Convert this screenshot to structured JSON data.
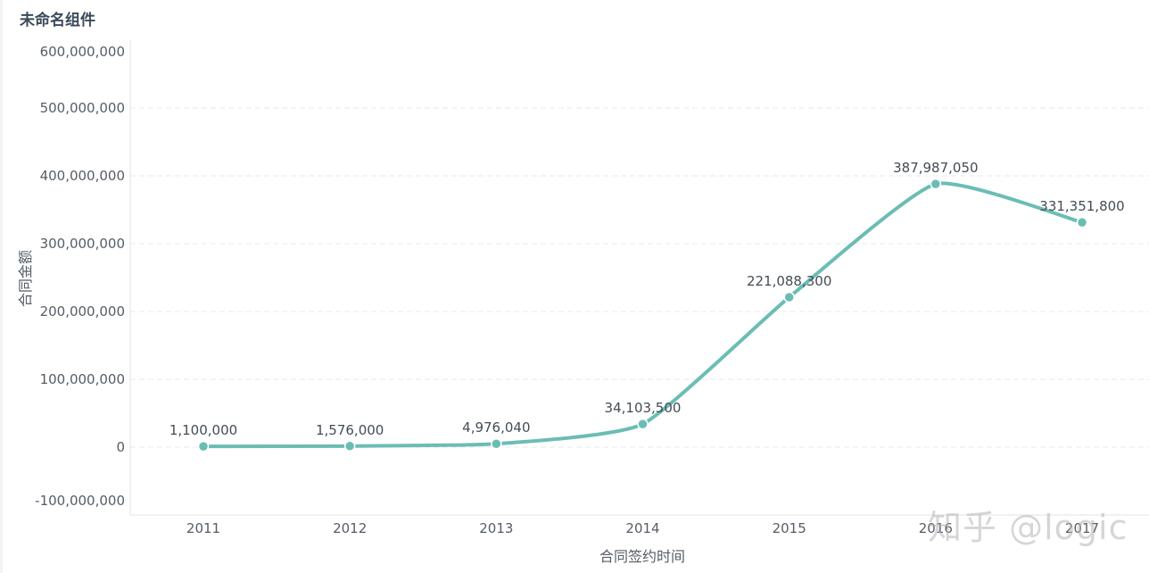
{
  "widget": {
    "title": "未命名组件"
  },
  "watermark": "知乎 @logic",
  "colors": {
    "line": "#6bbdb4",
    "grid": "#e8e8e8",
    "axis": "#e3e3e3"
  },
  "chart_data": {
    "type": "line",
    "smooth": true,
    "xlabel": "合同签约时间",
    "ylabel": "合同金额",
    "categories": [
      "2011",
      "2012",
      "2013",
      "2014",
      "2015",
      "2016",
      "2017"
    ],
    "series": [
      {
        "values": [
          1100000,
          1576000,
          4976040,
          34103500,
          221088300,
          387987050,
          331351800
        ],
        "labels": [
          "1,100,000",
          "1,576,000",
          "4,976,040",
          "34,103,500",
          "221,088,300",
          "387,987,050",
          "331,351,800"
        ]
      }
    ],
    "yticks": [
      {
        "value": 600000000,
        "label": "600,000,000"
      },
      {
        "value": 500000000,
        "label": "500,000,000"
      },
      {
        "value": 400000000,
        "label": "400,000,000"
      },
      {
        "value": 300000000,
        "label": "300,000,000"
      },
      {
        "value": 200000000,
        "label": "200,000,000"
      },
      {
        "value": 100000000,
        "label": "100,000,000"
      },
      {
        "value": 0,
        "label": "0"
      },
      {
        "value": -100000000,
        "label": "-100,000,000"
      }
    ],
    "ylim": [
      -100000000,
      600000000
    ],
    "grid": true
  }
}
